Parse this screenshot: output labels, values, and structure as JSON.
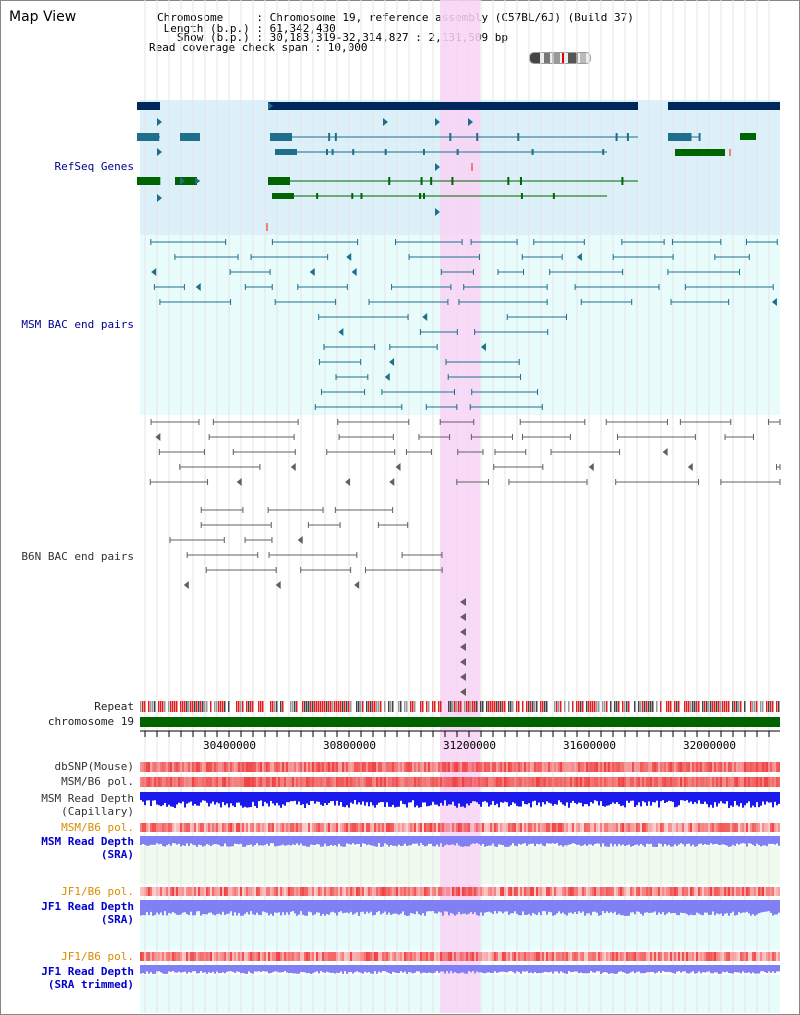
{
  "app": {
    "title": "Map View"
  },
  "info": {
    "chromosome_line": "Chromosome     : Chromosome 19, reference assembly (C57BL/6J) (Build 37)",
    "length_line": " Length (b.p.) : 61,342,430",
    "show_line": "   Show (b.p.) : 30,183,319-32,314,827 : 2,131,509 bp",
    "coverage_line": "Read coverage check span : 10,000"
  },
  "track_labels": {
    "refseq": "RefSeq Genes",
    "msm_bac": "MSM BAC end pairs",
    "b6n_bac": "B6N BAC end pairs",
    "repeat": "Repeat",
    "chromosome": "chromosome 19",
    "dbsnp": "dbSNP(Mouse)",
    "msm_b6_pol_1": "MSM/B6 pol.",
    "msm_read_depth_cap": "MSM Read Depth\n(Capillary)",
    "msm_b6_pol_2": "MSM/B6 pol.",
    "msm_read_depth_sra": "MSM Read Depth\n(SRA)",
    "jf1_b6_pol_1": "JF1/B6 pol.",
    "jf1_read_depth_sra": "JF1 Read Depth\n(SRA)",
    "jf1_b6_pol_2": "JF1/B6 pol.",
    "jf1_read_depth_trimmed": "JF1 Read Depth\n(SRA trimmed)"
  },
  "axis": {
    "ticks": [
      "30400000",
      "30800000",
      "31200000",
      "31600000",
      "32000000"
    ]
  },
  "colors": {
    "refseq_bg": "#dcf0fa",
    "msm_bg": "#e8fcfc",
    "highlight": "#f8d4f4",
    "gene_dark": "#00285a",
    "gene_teal": "#1e6e8c",
    "gene_green": "#006400",
    "bac_teal": "#1e6e8c",
    "bac_gray": "#606060",
    "chromosome_bar": "#006400",
    "depth_dark": "#1a1aee",
    "depth_light": "#8080f4",
    "snp_red": "#f04040",
    "lightgreen_bg": "#f0fbf0",
    "lightcyan_bg": "#e8fcfc"
  }
}
